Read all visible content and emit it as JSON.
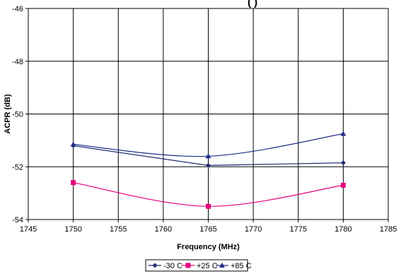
{
  "chart_data": {
    "type": "line",
    "title": "(              )",
    "xlabel": "Frequency (MHz)",
    "ylabel": "ACPR (dB)",
    "xlim": [
      1745,
      1785
    ],
    "ylim": [
      -54,
      -46
    ],
    "xticks": [
      1745,
      1750,
      1755,
      1760,
      1765,
      1770,
      1775,
      1780,
      1785
    ],
    "yticks": [
      -46,
      -48,
      -50,
      -52,
      -54
    ],
    "grid": true,
    "legend_position": "bottom",
    "x": [
      1750,
      1765,
      1780
    ],
    "series": [
      {
        "name": "-30 C",
        "values": [
          -51.2,
          -51.95,
          -51.85
        ],
        "color": "#1f2d6e",
        "marker": "diamond",
        "smooth": false
      },
      {
        "name": "+25 C",
        "values": [
          -52.6,
          -53.5,
          -52.7
        ],
        "color": "#e6007e",
        "marker": "square",
        "smooth": true
      },
      {
        "name": "+85 C",
        "values": [
          -51.15,
          -51.6,
          -50.75
        ],
        "color": "#1f2d8a",
        "marker": "triangle",
        "smooth": true
      }
    ]
  }
}
